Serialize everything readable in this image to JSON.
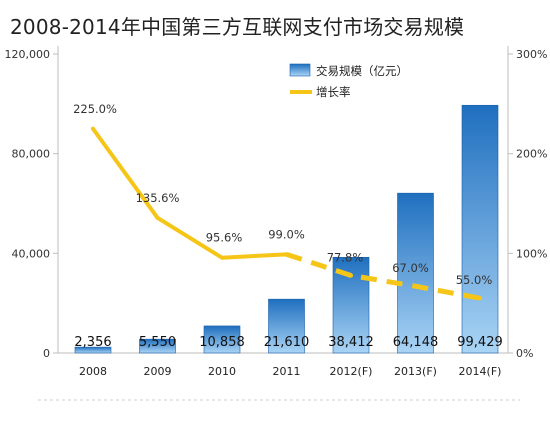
{
  "title": "2008-2014年中国第三方互联网支付市场交易规模",
  "chart_data": {
    "type": "bar+line",
    "categories": [
      "2008",
      "2009",
      "2010",
      "2011",
      "2012(F)",
      "2013(F)",
      "2014(F)"
    ],
    "series": [
      {
        "name": "交易规模（亿元）",
        "type": "bar",
        "axis": "left",
        "values": [
          2356,
          5550,
          10858,
          21610,
          38412,
          64148,
          99429
        ],
        "labels": [
          "2,356",
          "5,550",
          "10,858",
          "21,610",
          "38,412",
          "64,148",
          "99,429"
        ]
      },
      {
        "name": "增长率",
        "type": "line",
        "axis": "right",
        "values": [
          225.0,
          135.6,
          95.6,
          99.0,
          77.8,
          67.0,
          55.0
        ],
        "labels": [
          "225.0%",
          "135.6%",
          "95.6%",
          "99.0%",
          "77.8%",
          "67.0%",
          "55.0%"
        ],
        "dashed_from_index": 3
      }
    ],
    "y_left": {
      "ticks": [
        "0",
        "40,000",
        "80,000",
        "120,000"
      ],
      "lim": [
        0,
        120000
      ]
    },
    "y_right": {
      "ticks": [
        "0%",
        "100%",
        "200%",
        "300%"
      ],
      "lim": [
        0,
        300
      ]
    },
    "legend_position": "top",
    "grid": false,
    "colors": {
      "bar": "#1f6fbf",
      "bar_light": "#a9d4f5",
      "line": "#f5c518",
      "axis": "#bdbdbd"
    }
  }
}
